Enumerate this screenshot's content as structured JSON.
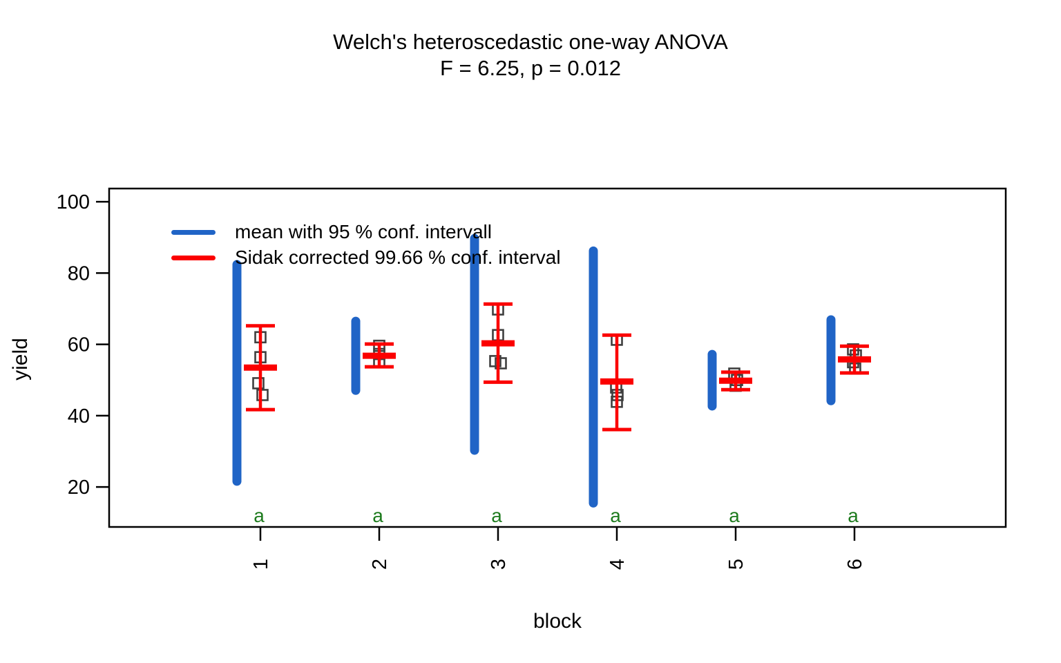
{
  "chart_data": {
    "type": "errorbar",
    "title": "Welch's heteroscedastic one-way ANOVA",
    "subtitle": "F = 6.25, p = 0.012",
    "xlabel": "block",
    "ylabel": "yield",
    "x_tick_labels": [
      "1",
      "2",
      "3",
      "4",
      "5",
      "6"
    ],
    "y_ticks": [
      20,
      40,
      60,
      80,
      100
    ],
    "ylim": [
      8.8,
      103.7
    ],
    "grid": false,
    "legend_position": "top-left-inside",
    "legend": [
      {
        "label": "mean with 95 % conf. intervall",
        "color": "#2064c6",
        "series": "mean_ci95"
      },
      {
        "label": "Sidak corrected 99.66 % conf. interval",
        "color": "#fb0000",
        "series": "sidak_ci"
      }
    ],
    "colors": {
      "ci95_bar": "#2064c6",
      "sidak_bar": "#fb0000",
      "points": "#3f3f3f",
      "group_letter": "#1e7b1e",
      "axis": "#000000"
    },
    "groups": [
      {
        "block": "1",
        "letter": "a",
        "ci95": [
          21.6,
          82.4
        ],
        "sidak_ci": [
          41.7,
          65.2
        ],
        "mean": 53.5,
        "points": [
          {
            "v": 62.0,
            "dx": 0
          },
          {
            "v": 56.4,
            "dx": 0
          },
          {
            "v": 49.1,
            "dx": -3
          },
          {
            "v": 45.8,
            "dx": 3
          }
        ]
      },
      {
        "block": "2",
        "letter": "a",
        "ci95": [
          47.1,
          66.5
        ],
        "sidak_ci": [
          53.7,
          60.1
        ],
        "mean": 56.8,
        "points": [
          {
            "v": 59.6,
            "dx": 0
          },
          {
            "v": 57.3,
            "dx": 0
          },
          {
            "v": 55.2,
            "dx": 0
          }
        ]
      },
      {
        "block": "3",
        "letter": "a",
        "ci95": [
          30.3,
          89.7
        ],
        "sidak_ci": [
          49.4,
          71.3
        ],
        "mean": 60.3,
        "points": [
          {
            "v": 69.8,
            "dx": 0
          },
          {
            "v": 62.6,
            "dx": 0
          },
          {
            "v": 55.3,
            "dx": -4
          },
          {
            "v": 54.7,
            "dx": 4
          }
        ]
      },
      {
        "block": "4",
        "letter": "a",
        "ci95": [
          15.5,
          86.2
        ],
        "sidak_ci": [
          36.1,
          62.6
        ],
        "mean": 49.6,
        "points": [
          {
            "v": 61.3,
            "dx": 0
          },
          {
            "v": 47.9,
            "dx": -1
          },
          {
            "v": 45.8,
            "dx": 1
          },
          {
            "v": 43.9,
            "dx": 0
          }
        ]
      },
      {
        "block": "5",
        "letter": "a",
        "ci95": [
          42.7,
          57.2
        ],
        "sidak_ci": [
          47.3,
          52.2
        ],
        "mean": 49.8,
        "points": [
          {
            "v": 51.8,
            "dx": -2
          },
          {
            "v": 50.0,
            "dx": 2
          },
          {
            "v": 48.4,
            "dx": 0
          }
        ]
      },
      {
        "block": "6",
        "letter": "a",
        "ci95": [
          44.2,
          66.9
        ],
        "sidak_ci": [
          52.0,
          59.5
        ],
        "mean": 55.8,
        "points": [
          {
            "v": 58.6,
            "dx": -2
          },
          {
            "v": 56.9,
            "dx": 2
          },
          {
            "v": 55.0,
            "dx": -2
          },
          {
            "v": 53.2,
            "dx": 1
          }
        ]
      }
    ]
  }
}
